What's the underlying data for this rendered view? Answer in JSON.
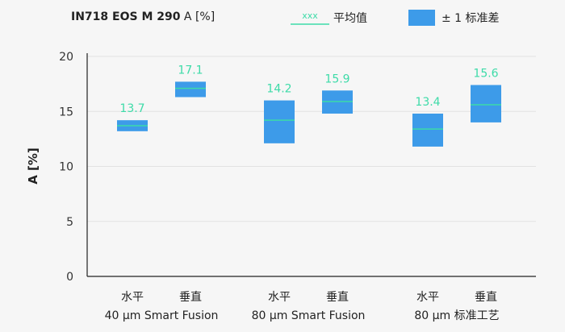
{
  "title_bold": "IN718 EOS M 290",
  "title_rest": " A [%]",
  "ylabel": "A [%]",
  "legend": {
    "mean_sample": "xxx",
    "mean_label": "平均值",
    "sd_label": "± 1 标准差"
  },
  "colors": {
    "box": "#3d9be9",
    "mean_line": "#3ddba8",
    "value_text": "#3ddba8",
    "axis": "#222222",
    "grid": "#e2e2e2",
    "background": "#f6f6f6"
  },
  "chart_data": {
    "type": "box",
    "ylim": [
      0,
      20
    ],
    "yticks": [
      0,
      5,
      10,
      15,
      20
    ],
    "grid": true,
    "groups": [
      {
        "label": "40 µm Smart Fusion",
        "items": [
          {
            "label": "水平",
            "mean": 13.7,
            "low": 13.2,
            "high": 14.2
          },
          {
            "label": "垂直",
            "mean": 17.1,
            "low": 16.3,
            "high": 17.7
          }
        ]
      },
      {
        "label": "80 µm Smart Fusion",
        "items": [
          {
            "label": "水平",
            "mean": 14.2,
            "low": 12.1,
            "high": 16.0
          },
          {
            "label": "垂直",
            "mean": 15.9,
            "low": 14.8,
            "high": 16.9
          }
        ]
      },
      {
        "label": "80 µm 标准工艺",
        "items": [
          {
            "label": "水平",
            "mean": 13.4,
            "low": 11.8,
            "high": 14.8
          },
          {
            "label": "垂直",
            "mean": 15.6,
            "low": 14.0,
            "high": 17.4
          }
        ]
      }
    ]
  }
}
